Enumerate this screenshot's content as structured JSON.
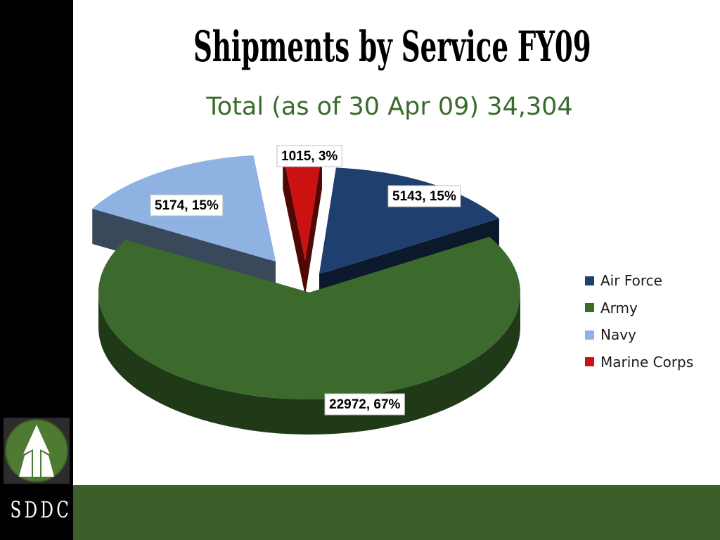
{
  "slide": {
    "title": "Shipments by Service FY09",
    "subtitle": "Total (as of 30 Apr 09) 34,304",
    "brand_text": "SDDC",
    "colors": {
      "left_bar": "#000000",
      "bottom_bar": "#3a5f2b",
      "subtitle": "#3a6b2c"
    }
  },
  "chart_data": {
    "type": "pie",
    "title": "Shipments by Service FY09",
    "subtitle": "Total (as of 30 Apr 09) 34,304",
    "total": 34304,
    "three_d": true,
    "exploded": true,
    "legend_position": "right",
    "categories": [
      "Air Force",
      "Army",
      "Navy",
      "Marine Corps"
    ],
    "values": [
      5143,
      22972,
      5174,
      1015
    ],
    "percent_labels": [
      "15%",
      "67%",
      "15%",
      "3%"
    ],
    "data_labels": [
      "5143, 15%",
      "22972, 67%",
      "5174, 15%",
      "1015, 3%"
    ],
    "colors": [
      "#1f3f6e",
      "#3b6a2c",
      "#8eb3e3",
      "#cc1111"
    ]
  }
}
